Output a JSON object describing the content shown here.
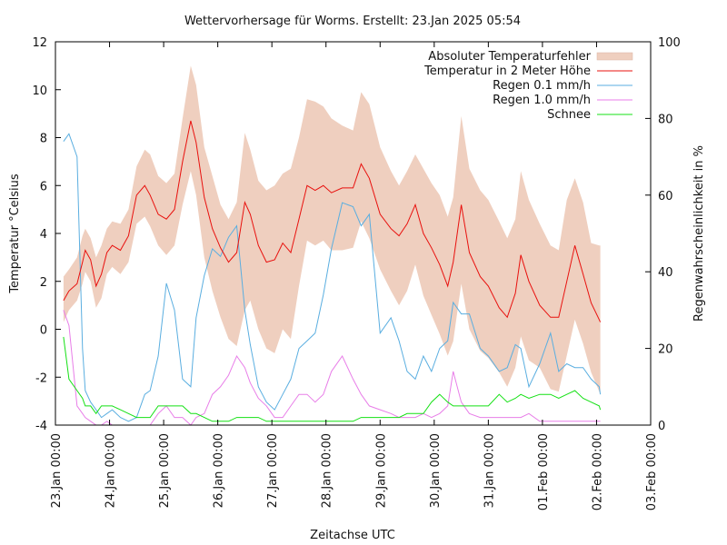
{
  "chart_data": {
    "type": "line",
    "title": "Wettervorhersage für Worms. Erstellt: 23.Jan 2025 05:54",
    "xlabel": "Zeitachse UTC",
    "ylabel": "Temperatur °Celsius",
    "y2label": "Regenwahrscheinlichkeit in %",
    "ylim": [
      -4,
      12
    ],
    "y2lim": [
      0,
      100
    ],
    "xlim_days": [
      0,
      11
    ],
    "yticks": [
      "-4",
      "-2",
      "0",
      "2",
      "4",
      "6",
      "8",
      "10",
      "12"
    ],
    "y2ticks": [
      "0",
      "20",
      "40",
      "60",
      "80",
      "100"
    ],
    "xticks": [
      "23.Jan 00:00",
      "24.Jan 00:00",
      "25.Jan 00:00",
      "26.Jan 00:00",
      "27.Jan 00:00",
      "28.Jan 00:00",
      "29.Jan 00:00",
      "30.Jan 00:00",
      "31.Jan 00:00",
      "01.Feb 00:00",
      "02.Feb 00:00",
      "03.Feb 00:00"
    ],
    "legend_position": "top-right",
    "grid": false,
    "legend": [
      {
        "label": "Absoluter Temperaturfehler",
        "color": "#efcfbf",
        "kind": "band"
      },
      {
        "label": "Temperatur in 2 Meter Höhe",
        "color": "#e8100d",
        "kind": "line"
      },
      {
        "label": "Regen 0.1 mm/h",
        "color": "#5aaee0",
        "kind": "line"
      },
      {
        "label": "Regen 1.0 mm/h",
        "color": "#e87ee8",
        "kind": "line"
      },
      {
        "label": "Schnee",
        "color": "#14e014",
        "kind": "line"
      }
    ],
    "x_days": [
      0.15,
      0.25,
      0.4,
      0.5,
      0.55,
      0.65,
      0.75,
      0.85,
      0.95,
      1.05,
      1.2,
      1.35,
      1.5,
      1.65,
      1.75,
      1.9,
      2.05,
      2.2,
      2.35,
      2.5,
      2.6,
      2.75,
      2.9,
      3.05,
      3.2,
      3.35,
      3.5,
      3.6,
      3.75,
      3.9,
      4.05,
      4.2,
      4.35,
      4.5,
      4.65,
      4.8,
      4.95,
      5.1,
      5.3,
      5.5,
      5.65,
      5.8,
      6.0,
      6.2,
      6.35,
      6.5,
      6.65,
      6.8,
      6.95,
      7.1,
      7.25,
      7.35,
      7.5,
      7.65,
      7.85,
      8.0,
      8.2,
      8.35,
      8.5,
      8.6,
      8.75,
      8.95,
      9.15,
      9.3,
      9.45,
      9.6,
      9.75,
      9.9,
      10.05,
      10.07
    ],
    "series": [
      {
        "name": "Temperatur in 2 Meter Höhe",
        "unit": "°C",
        "values": [
          1.2,
          1.6,
          1.9,
          2.8,
          3.3,
          2.9,
          1.8,
          2.3,
          3.2,
          3.5,
          3.3,
          3.9,
          5.6,
          6.0,
          5.6,
          4.8,
          4.6,
          5.0,
          7.0,
          8.7,
          7.8,
          5.5,
          4.2,
          3.4,
          2.8,
          3.2,
          5.3,
          4.8,
          3.5,
          2.8,
          2.9,
          3.6,
          3.2,
          4.6,
          6.0,
          5.8,
          6.0,
          5.7,
          5.9,
          5.9,
          6.9,
          6.3,
          4.8,
          4.2,
          3.9,
          4.4,
          5.2,
          4.0,
          3.4,
          2.7,
          1.8,
          2.8,
          5.2,
          3.2,
          2.2,
          1.8,
          0.9,
          0.5,
          1.5,
          3.1,
          2.0,
          1.0,
          0.5,
          0.5,
          2.0,
          3.5,
          2.3,
          1.1,
          0.4,
          0.3
        ]
      },
      {
        "name": "Absoluter Temperaturfehler (untere Grenze)",
        "unit": "°C",
        "values": [
          0.3,
          0.8,
          1.2,
          1.9,
          2.4,
          2.0,
          0.9,
          1.3,
          2.3,
          2.6,
          2.3,
          2.8,
          4.4,
          4.7,
          4.3,
          3.5,
          3.1,
          3.5,
          5.2,
          6.6,
          5.6,
          3.0,
          1.6,
          0.5,
          -0.4,
          -0.7,
          0.8,
          1.2,
          0.0,
          -0.8,
          -1.0,
          0.0,
          -0.4,
          1.8,
          3.7,
          3.5,
          3.7,
          3.3,
          3.3,
          3.4,
          4.5,
          3.8,
          2.5,
          1.6,
          1.0,
          1.6,
          2.7,
          1.4,
          0.6,
          -0.2,
          -1.1,
          -0.5,
          1.9,
          0.0,
          -0.9,
          -1.2,
          -1.8,
          -2.4,
          -1.6,
          -0.3,
          -1.3,
          -1.6,
          -2.5,
          -2.6,
          -1.1,
          0.4,
          -0.6,
          -1.8,
          -2.6,
          -2.7
        ]
      },
      {
        "name": "Absoluter Temperaturfehler (obere Grenze)",
        "unit": "°C",
        "values": [
          2.2,
          2.5,
          3.0,
          3.9,
          4.2,
          3.8,
          3.0,
          3.5,
          4.2,
          4.5,
          4.4,
          5.0,
          6.8,
          7.5,
          7.3,
          6.4,
          6.1,
          6.5,
          8.8,
          11.0,
          10.2,
          7.6,
          6.4,
          5.2,
          4.6,
          5.3,
          8.2,
          7.5,
          6.2,
          5.8,
          6.0,
          6.5,
          6.7,
          8.0,
          9.6,
          9.5,
          9.3,
          8.8,
          8.5,
          8.3,
          9.9,
          9.4,
          7.6,
          6.6,
          6.0,
          6.6,
          7.3,
          6.7,
          6.1,
          5.6,
          4.7,
          5.5,
          8.9,
          6.7,
          5.8,
          5.4,
          4.5,
          3.8,
          4.6,
          6.6,
          5.4,
          4.4,
          3.5,
          3.3,
          5.4,
          6.3,
          5.3,
          3.6,
          3.5,
          3.5
        ]
      },
      {
        "name": "Regen 0.1 mm/h",
        "unit": "%",
        "values": [
          74,
          76,
          70,
          20,
          9,
          6,
          4,
          2,
          3,
          4,
          2,
          1,
          2,
          8,
          9,
          18,
          37,
          30,
          12,
          10,
          28,
          39,
          46,
          44,
          49,
          52,
          30,
          21,
          10,
          6,
          4,
          8,
          12,
          20,
          22,
          24,
          34,
          46,
          58,
          57,
          52,
          55,
          24,
          28,
          22,
          14,
          12,
          18,
          14,
          20,
          22,
          32,
          29,
          29,
          20,
          18,
          14,
          15,
          21,
          20,
          10,
          16,
          24,
          14,
          16,
          15,
          15,
          12,
          10,
          8
        ]
      },
      {
        "name": "Regen 1.0 mm/h",
        "unit": "%",
        "values": [
          30,
          26,
          5,
          3,
          2,
          1,
          0,
          0,
          1,
          0,
          0,
          0,
          0,
          0,
          0,
          3,
          5,
          2,
          2,
          0,
          2,
          3,
          8,
          10,
          13,
          18,
          15,
          11,
          7,
          5,
          2,
          2,
          5,
          8,
          8,
          6,
          8,
          14,
          18,
          12,
          8,
          5,
          4,
          3,
          2,
          2,
          2,
          3,
          2,
          3,
          5,
          14,
          6,
          3,
          2,
          2,
          2,
          2,
          2,
          2,
          3,
          1,
          1,
          1,
          1,
          1,
          1,
          1,
          1,
          1
        ]
      },
      {
        "name": "Schnee",
        "unit": "%",
        "values": [
          23,
          12,
          9,
          7,
          5,
          5,
          3,
          5,
          5,
          5,
          4,
          3,
          2,
          2,
          2,
          5,
          5,
          5,
          5,
          3,
          3,
          2,
          1,
          1,
          1,
          2,
          2,
          2,
          2,
          1,
          1,
          1,
          1,
          1,
          1,
          1,
          1,
          1,
          1,
          1,
          2,
          2,
          2,
          2,
          2,
          3,
          3,
          3,
          6,
          8,
          6,
          5,
          5,
          5,
          5,
          5,
          8,
          6,
          7,
          8,
          7,
          8,
          8,
          7,
          8,
          9,
          7,
          6,
          5,
          4
        ]
      }
    ]
  }
}
